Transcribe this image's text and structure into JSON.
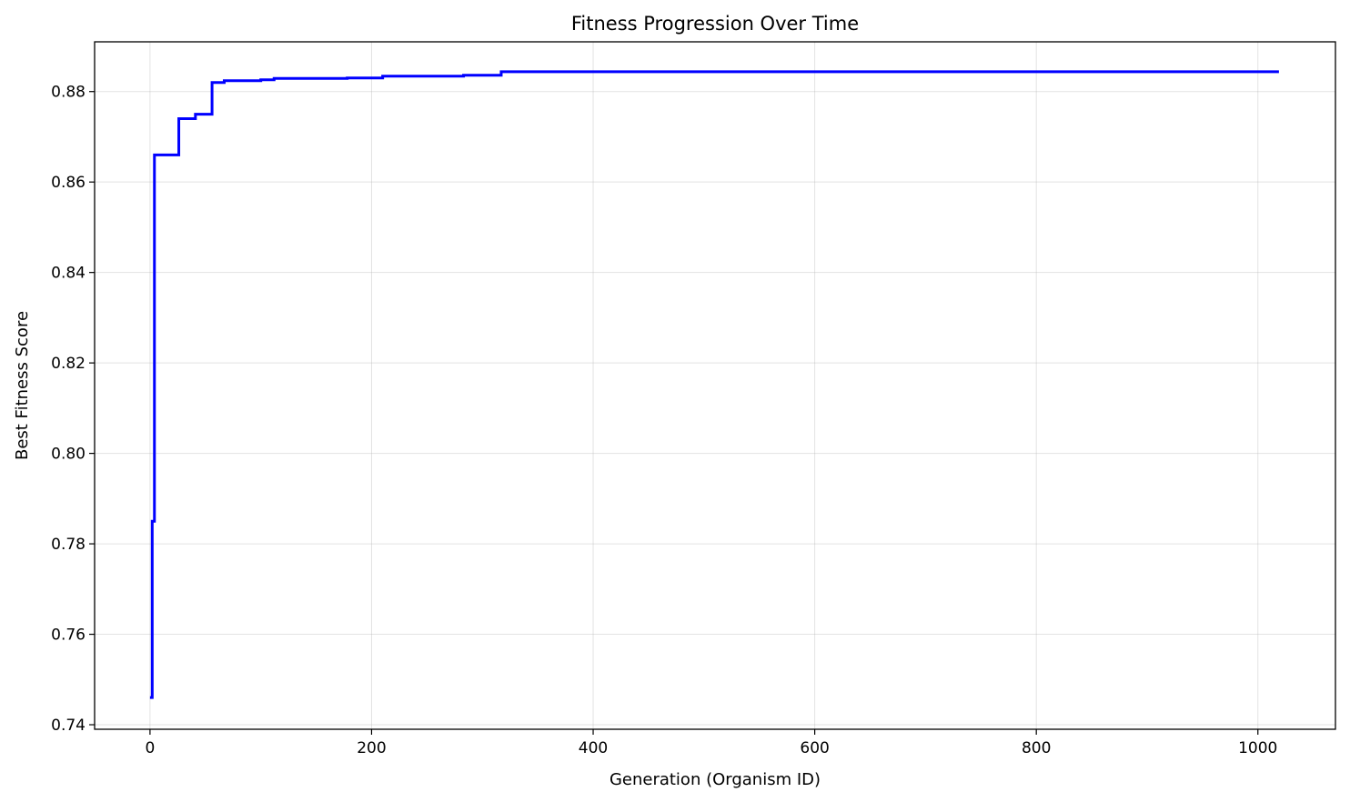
{
  "chart_data": {
    "type": "line",
    "title": "Fitness Progression Over Time",
    "xlabel": "Generation (Organism ID)",
    "ylabel": "Best Fitness Score",
    "xlim": [
      -50,
      1070
    ],
    "ylim": [
      0.739,
      0.891
    ],
    "grid": true,
    "xticks": [
      0,
      200,
      400,
      600,
      800,
      1000
    ],
    "xtick_labels": [
      "0",
      "200",
      "400",
      "600",
      "800",
      "1000"
    ],
    "yticks": [
      0.74,
      0.76,
      0.78,
      0.8,
      0.82,
      0.84,
      0.86,
      0.88
    ],
    "ytick_labels": [
      "0.74",
      "0.76",
      "0.78",
      "0.80",
      "0.82",
      "0.84",
      "0.86",
      "0.88"
    ],
    "series": [
      {
        "color": "#0000ff",
        "step": "post",
        "points": [
          [
            0,
            0.746
          ],
          [
            2,
            0.785
          ],
          [
            4,
            0.866
          ],
          [
            26,
            0.874
          ],
          [
            41,
            0.875
          ],
          [
            56,
            0.882
          ],
          [
            67,
            0.8824
          ],
          [
            100,
            0.8826
          ],
          [
            112,
            0.8829
          ],
          [
            178,
            0.883
          ],
          [
            210,
            0.8834
          ],
          [
            283,
            0.8836
          ],
          [
            317,
            0.8844
          ],
          [
            1019,
            0.8844
          ]
        ]
      }
    ]
  }
}
